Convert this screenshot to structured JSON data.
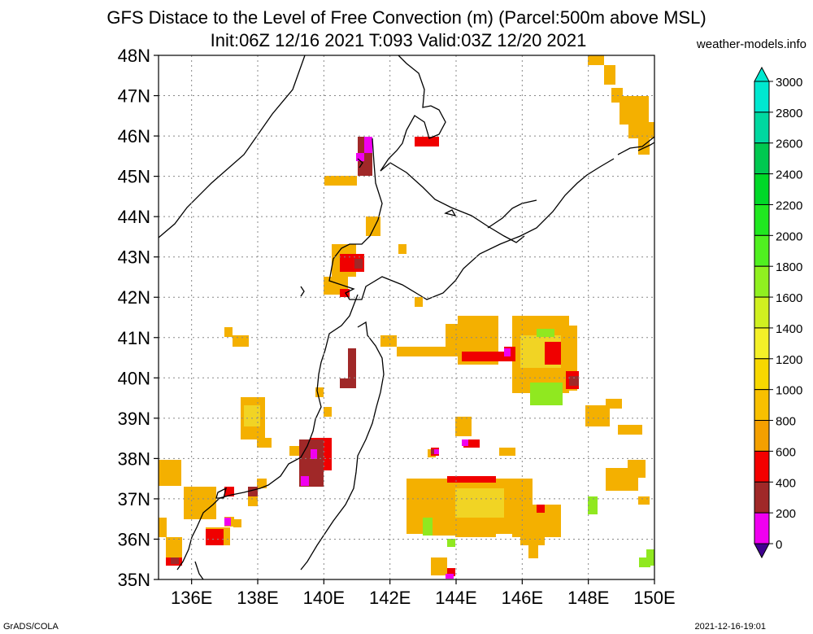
{
  "header": {
    "title_line1": "GFS Distace to the Level of Free Convection (m) (Parcel:500m above MSL)",
    "title_line2": "Init:06Z 12/16 2021 T:093 Valid:03Z 12/20 2021",
    "credit": "weather-models.info"
  },
  "footer": {
    "left": "GrADS/COLA",
    "right": "2021-12-16-19:01"
  },
  "map": {
    "lon_range": [
      135,
      150
    ],
    "lat_range": [
      35,
      48
    ],
    "lat_labels": [
      "48N",
      "47N",
      "46N",
      "45N",
      "44N",
      "43N",
      "42N",
      "41N",
      "40N",
      "39N",
      "38N",
      "37N",
      "36N",
      "35N"
    ],
    "lon_labels": [
      "136E",
      "138E",
      "140E",
      "142E",
      "144E",
      "146E",
      "148E",
      "150E"
    ]
  },
  "colorbar": {
    "labels": [
      "3000",
      "2800",
      "2600",
      "2400",
      "2200",
      "2000",
      "1800",
      "1600",
      "1400",
      "1200",
      "1000",
      "800",
      "600",
      "400",
      "200",
      "0"
    ],
    "colors": [
      "#00e8d0",
      "#00d8a0",
      "#00c850",
      "#00d828",
      "#20e820",
      "#50f020",
      "#90f020",
      "#d0f020",
      "#f4f028",
      "#f8d800",
      "#f8c000",
      "#f4a000",
      "#f40000",
      "#a02828",
      "#f000f0",
      "#400090"
    ]
  }
}
